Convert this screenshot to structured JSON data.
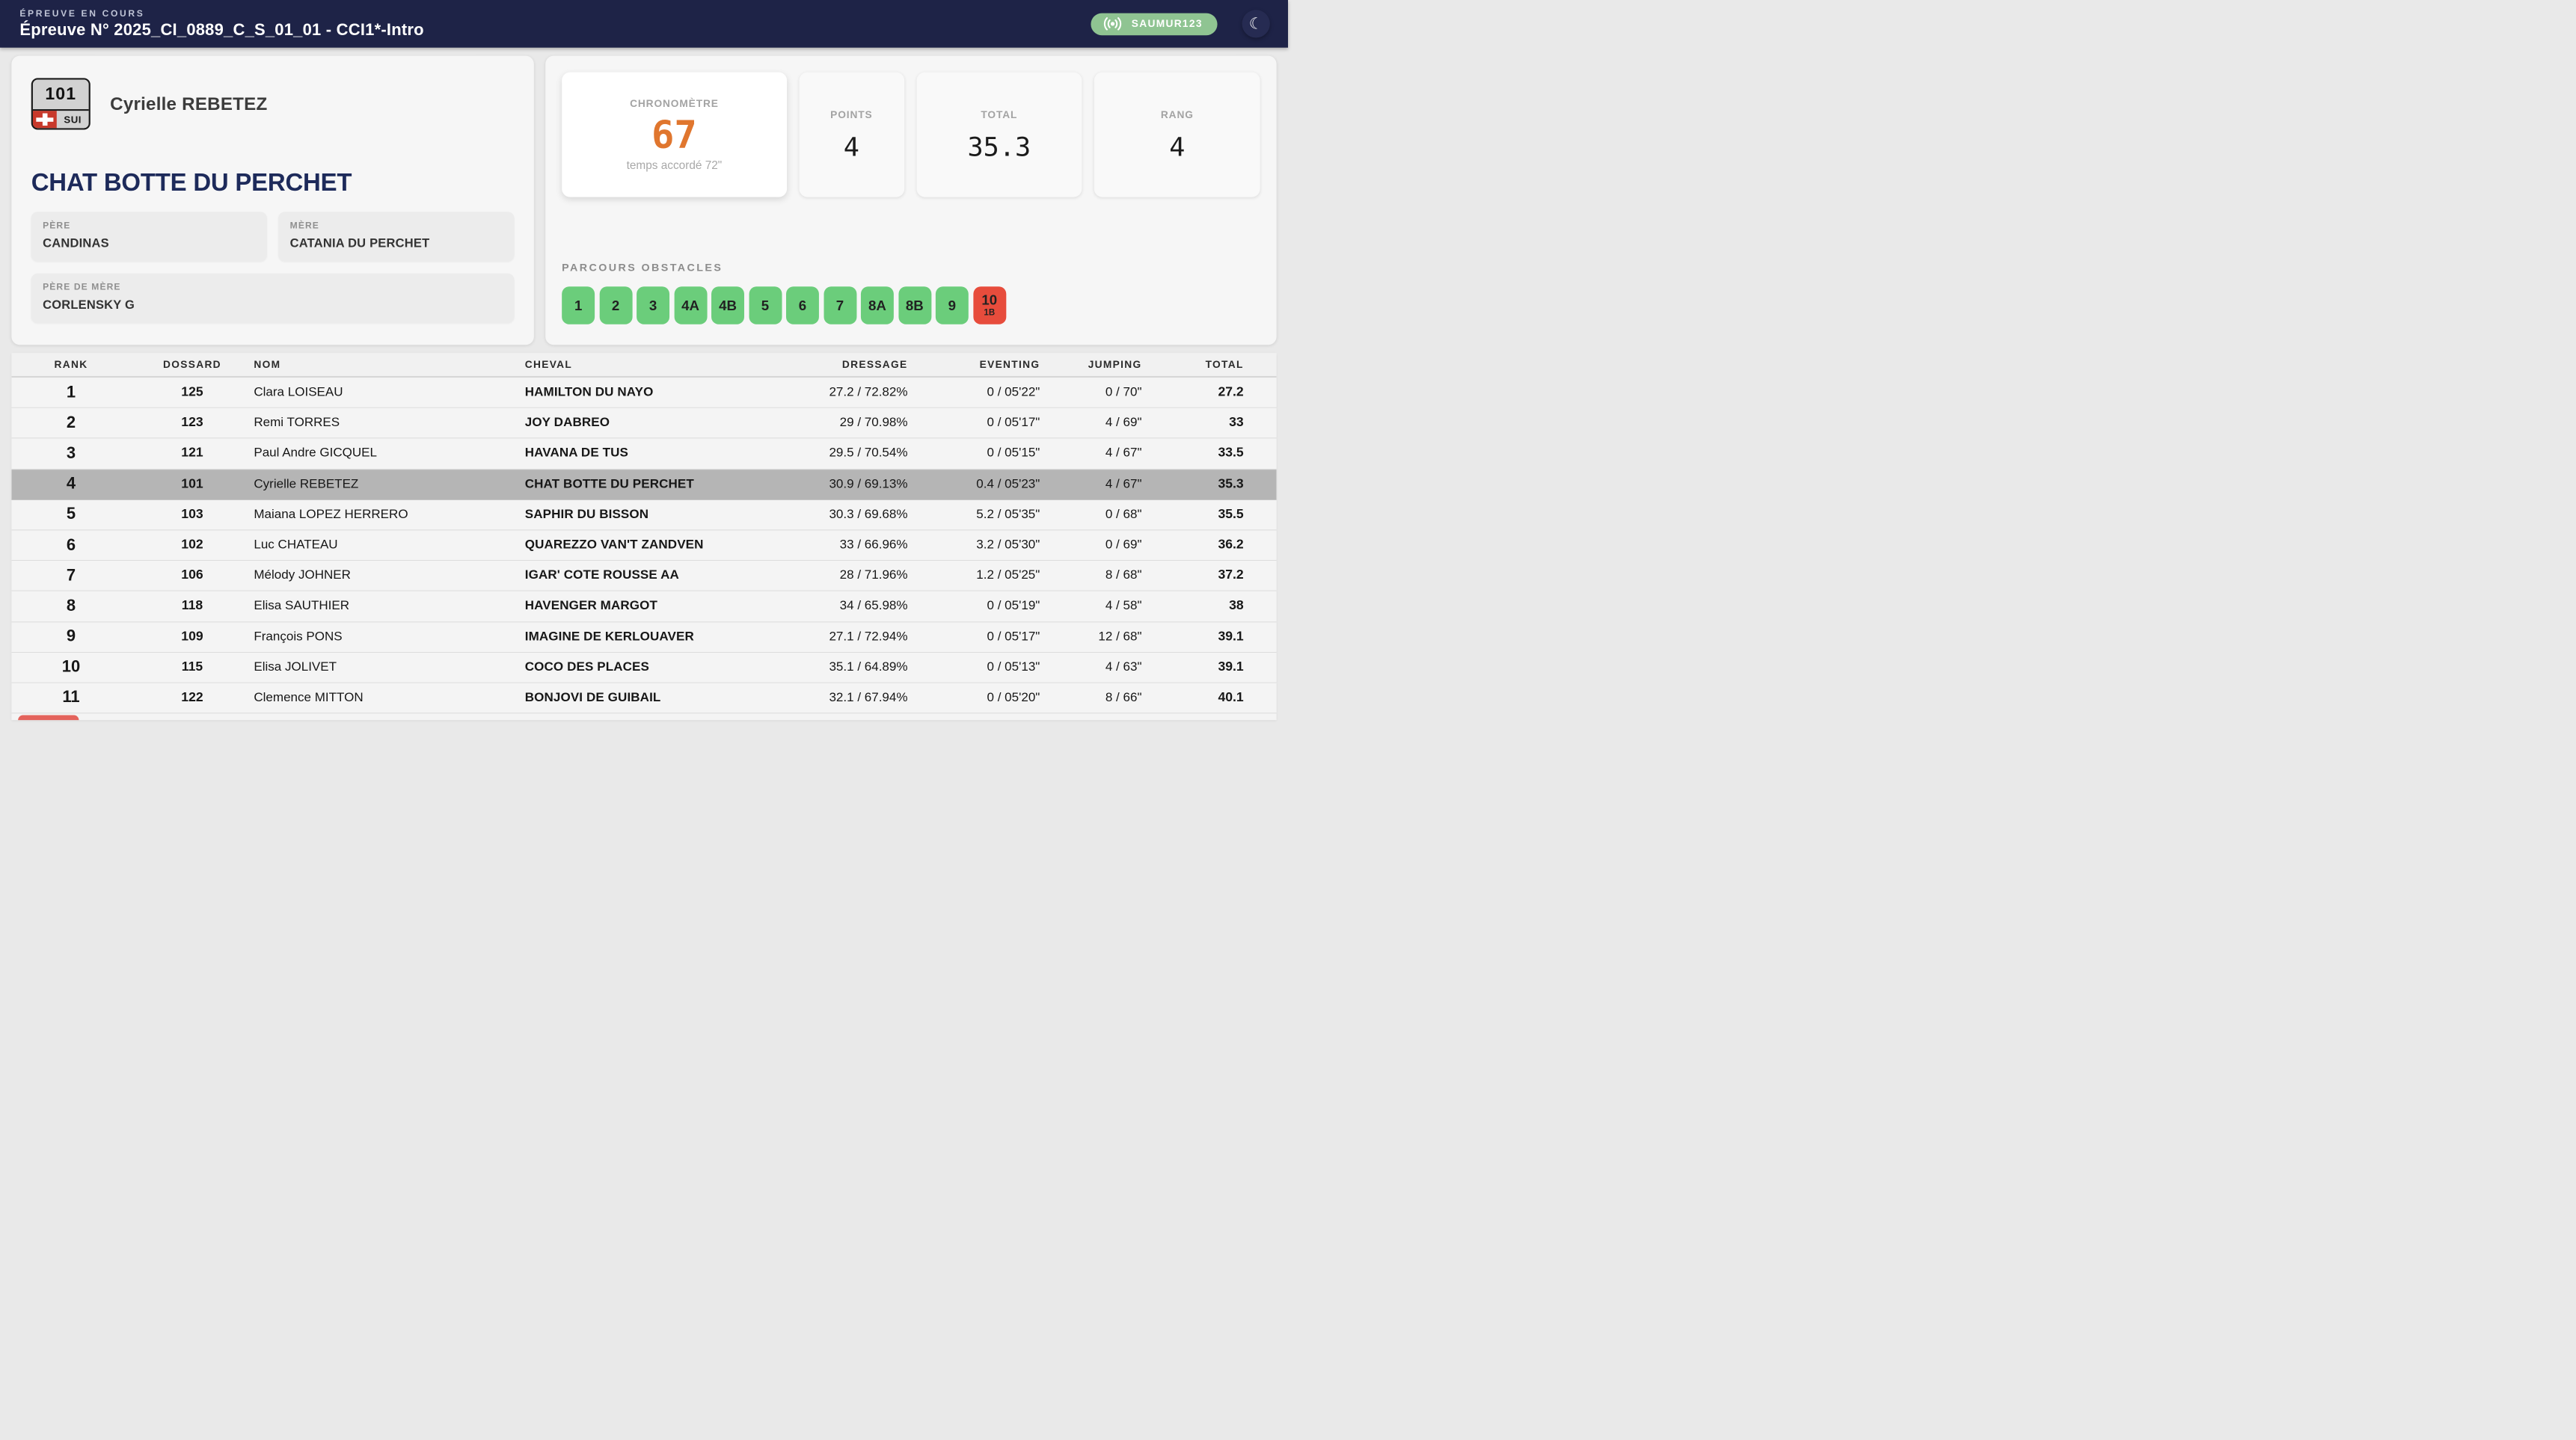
{
  "header": {
    "kicker": "ÉPREUVE EN COURS",
    "title": "Épreuve N° 2025_CI_0889_C_S_01_01 - CCI1*-Intro",
    "badge": "SAUMUR123"
  },
  "competitor": {
    "bib": "101",
    "country": "SUI",
    "rider": "Cyrielle REBETEZ",
    "horse": "CHAT BOTTE DU PERCHET",
    "pedigree": [
      {
        "label": "PÈRE",
        "value": "CANDINAS"
      },
      {
        "label": "MÈRE",
        "value": "CATANIA DU PERCHET"
      },
      {
        "label": "PÈRE DE MÈRE",
        "value": "CORLENSKY G"
      }
    ]
  },
  "live": {
    "chrono_label": "CHRONOMÈTRE",
    "chrono_value": "67",
    "chrono_sub": "temps accordé 72\"",
    "stats": [
      {
        "label": "POINTS",
        "value": "4"
      },
      {
        "label": "TOTAL",
        "value": "35.3"
      },
      {
        "label": "RANG",
        "value": "4"
      }
    ],
    "obstacles_label": "PARCOURS OBSTACLES",
    "obstacles": [
      {
        "label": "1",
        "sub": "",
        "status": "clear"
      },
      {
        "label": "2",
        "sub": "",
        "status": "clear"
      },
      {
        "label": "3",
        "sub": "",
        "status": "clear"
      },
      {
        "label": "4A",
        "sub": "",
        "status": "clear"
      },
      {
        "label": "4B",
        "sub": "",
        "status": "clear"
      },
      {
        "label": "5",
        "sub": "",
        "status": "clear"
      },
      {
        "label": "6",
        "sub": "",
        "status": "clear"
      },
      {
        "label": "7",
        "sub": "",
        "status": "clear"
      },
      {
        "label": "8A",
        "sub": "",
        "status": "clear"
      },
      {
        "label": "8B",
        "sub": "",
        "status": "clear"
      },
      {
        "label": "9",
        "sub": "",
        "status": "clear"
      },
      {
        "label": "10",
        "sub": "1B",
        "status": "fault"
      }
    ]
  },
  "colors": {
    "navy_bar": "#1e2347",
    "badge_green": "#8fc492",
    "obstacle_green": "#6bcd7b",
    "obstacle_red": "#e74c3c",
    "chrono_orange": "#e0762e",
    "horse_navy": "#1d2a5a",
    "highlight_row": "#b5b5b5",
    "flag_red": "#c8392b"
  },
  "table": {
    "columns": [
      "RANK",
      "DOSSARD",
      "NOM",
      "CHEVAL",
      "DRESSAGE",
      "EVENTING",
      "JUMPING",
      "TOTAL"
    ],
    "rows": [
      {
        "rank": "1",
        "dossard": "125",
        "nom": "Clara LOISEAU",
        "cheval": "HAMILTON DU NAYO",
        "dressage": "27.2 / 72.82%",
        "eventing": "0 / 05'22\"",
        "jumping": "0 / 70\"",
        "total": "27.2",
        "highlight": false
      },
      {
        "rank": "2",
        "dossard": "123",
        "nom": "Remi TORRES",
        "cheval": "JOY DABREO",
        "dressage": "29 / 70.98%",
        "eventing": "0 / 05'17\"",
        "jumping": "4 / 69\"",
        "total": "33",
        "highlight": false
      },
      {
        "rank": "3",
        "dossard": "121",
        "nom": "Paul Andre GICQUEL",
        "cheval": "HAVANA DE TUS",
        "dressage": "29.5 / 70.54%",
        "eventing": "0 / 05'15\"",
        "jumping": "4 / 67\"",
        "total": "33.5",
        "highlight": false
      },
      {
        "rank": "4",
        "dossard": "101",
        "nom": "Cyrielle REBETEZ",
        "cheval": "CHAT BOTTE DU PERCHET",
        "dressage": "30.9 / 69.13%",
        "eventing": "0.4 / 05'23\"",
        "jumping": "4 / 67\"",
        "total": "35.3",
        "highlight": true
      },
      {
        "rank": "5",
        "dossard": "103",
        "nom": "Maiana LOPEZ HERRERO",
        "cheval": "SAPHIR DU BISSON",
        "dressage": "30.3 / 69.68%",
        "eventing": "5.2 / 05'35\"",
        "jumping": "0 / 68\"",
        "total": "35.5",
        "highlight": false
      },
      {
        "rank": "6",
        "dossard": "102",
        "nom": "Luc CHATEAU",
        "cheval": "QUAREZZO VAN'T ZANDVEN",
        "dressage": "33 / 66.96%",
        "eventing": "3.2 / 05'30\"",
        "jumping": "0 / 69\"",
        "total": "36.2",
        "highlight": false
      },
      {
        "rank": "7",
        "dossard": "106",
        "nom": "Mélody JOHNER",
        "cheval": "IGAR' COTE ROUSSE AA",
        "dressage": "28 / 71.96%",
        "eventing": "1.2 / 05'25\"",
        "jumping": "8 / 68\"",
        "total": "37.2",
        "highlight": false
      },
      {
        "rank": "8",
        "dossard": "118",
        "nom": "Elisa SAUTHIER",
        "cheval": "HAVENGER MARGOT",
        "dressage": "34 / 65.98%",
        "eventing": "0 / 05'19\"",
        "jumping": "4 / 58\"",
        "total": "38",
        "highlight": false
      },
      {
        "rank": "9",
        "dossard": "109",
        "nom": "François PONS",
        "cheval": "IMAGINE DE KERLOUAVER",
        "dressage": "27.1 / 72.94%",
        "eventing": "0 / 05'17\"",
        "jumping": "12 / 68\"",
        "total": "39.1",
        "highlight": false
      },
      {
        "rank": "10",
        "dossard": "115",
        "nom": "Elisa JOLIVET",
        "cheval": "COCO DES PLACES",
        "dressage": "35.1 / 64.89%",
        "eventing": "0 / 05'13\"",
        "jumping": "4 / 63\"",
        "total": "39.1",
        "highlight": false
      },
      {
        "rank": "11",
        "dossard": "122",
        "nom": "Clemence MITTON",
        "cheval": "BONJOVI DE GUIBAIL",
        "dressage": "32.1 / 67.94%",
        "eventing": "0 / 05'20\"",
        "jumping": "8 / 66\"",
        "total": "40.1",
        "highlight": false
      }
    ]
  }
}
